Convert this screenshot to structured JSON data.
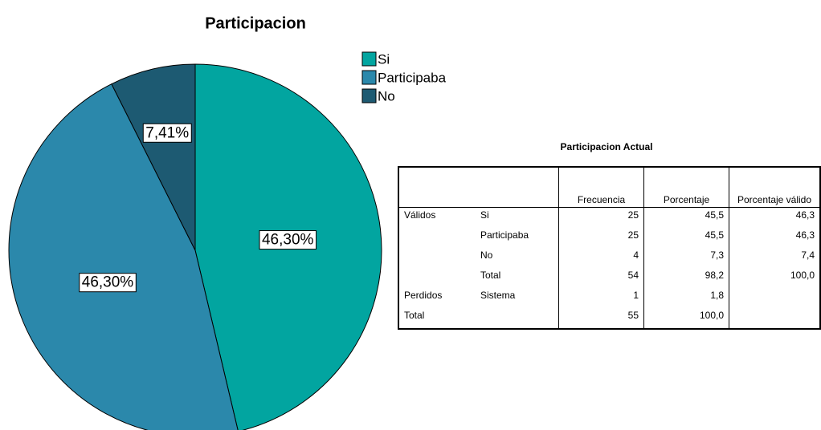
{
  "chart_data": {
    "type": "pie",
    "title": "Participacion",
    "categories": [
      "Si",
      "Participaba",
      "No"
    ],
    "values": [
      46.3,
      46.3,
      7.41
    ],
    "value_labels": [
      "46,30%",
      "46,30%",
      "7,41%"
    ],
    "colors": [
      "#02a5a0",
      "#2b88ab",
      "#1d5a72"
    ]
  },
  "table": {
    "title": "Participacion Actual",
    "columns": [
      "Frecuencia",
      "Porcentaje",
      "Porcentaje válido"
    ],
    "groups": [
      {
        "label": "Válidos",
        "rows": [
          {
            "label": "Si",
            "cells": [
              "25",
              "45,5",
              "46,3"
            ]
          },
          {
            "label": "Participaba",
            "cells": [
              "25",
              "45,5",
              "46,3"
            ]
          },
          {
            "label": "No",
            "cells": [
              "4",
              "7,3",
              "7,4"
            ]
          },
          {
            "label": "Total",
            "cells": [
              "54",
              "98,2",
              "100,0"
            ]
          }
        ]
      },
      {
        "label": "Perdidos",
        "rows": [
          {
            "label": "Sistema",
            "cells": [
              "1",
              "1,8"
            ]
          }
        ]
      },
      {
        "label": "Total",
        "cells": [
          "55",
          "100,0"
        ]
      }
    ]
  }
}
